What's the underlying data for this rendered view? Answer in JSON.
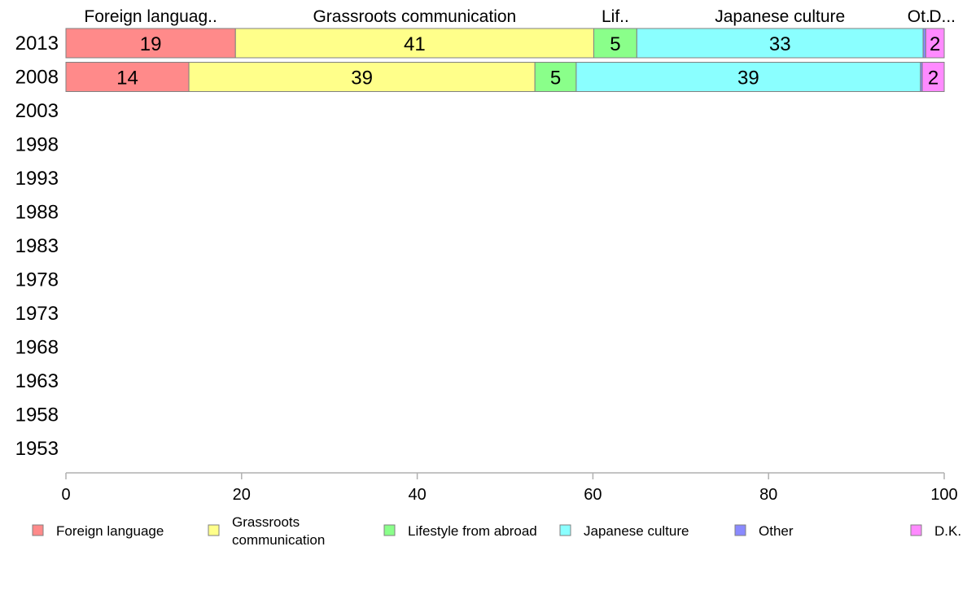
{
  "chart_data": {
    "type": "bar",
    "orientation": "horizontal",
    "stacked": true,
    "title": "",
    "xlabel": "",
    "ylabel": "",
    "xlim": [
      0,
      100
    ],
    "x_ticks": [
      0,
      20,
      40,
      60,
      80,
      100
    ],
    "categories": [
      "2013",
      "2008",
      "2003",
      "1998",
      "1993",
      "1988",
      "1983",
      "1978",
      "1973",
      "1968",
      "1963",
      "1958",
      "1953"
    ],
    "series": [
      {
        "name": "Foreign language",
        "color": "#ff8a8a",
        "values": [
          19.3,
          14,
          null,
          null,
          null,
          null,
          null,
          null,
          null,
          null,
          null,
          null,
          null
        ]
      },
      {
        "name": "Grassroots communication",
        "color": "#ffff8a",
        "values": [
          40.8,
          39.4,
          null,
          null,
          null,
          null,
          null,
          null,
          null,
          null,
          null,
          null,
          null
        ]
      },
      {
        "name": "Lifestyle from abroad",
        "color": "#8aff8a",
        "values": [
          4.9,
          4.7,
          null,
          null,
          null,
          null,
          null,
          null,
          null,
          null,
          null,
          null,
          null
        ]
      },
      {
        "name": "Japanese culture",
        "color": "#8affff",
        "values": [
          32.6,
          39.2,
          null,
          null,
          null,
          null,
          null,
          null,
          null,
          null,
          null,
          null,
          null
        ]
      },
      {
        "name": "Other",
        "color": "#8a8aff",
        "values": [
          0.3,
          0.2,
          null,
          null,
          null,
          null,
          null,
          null,
          null,
          null,
          null,
          null,
          null
        ]
      },
      {
        "name": "D.K.",
        "color": "#ff8aff",
        "values": [
          2.1,
          2.5,
          null,
          null,
          null,
          null,
          null,
          null,
          null,
          null,
          null,
          null,
          null
        ]
      }
    ],
    "bar_labels": [
      [
        "19",
        "41",
        "5",
        "33",
        "",
        "2"
      ],
      [
        "14",
        "39",
        "5",
        "39",
        "",
        "2"
      ]
    ],
    "segment_header_labels": [
      "Foreign languag..",
      "Grassroots communication",
      "Lif..",
      "Japanese culture",
      "Ot..",
      "D..."
    ],
    "legend": {
      "placement": "bottom",
      "entries": [
        {
          "lines": [
            "Foreign language"
          ]
        },
        {
          "lines": [
            "Grassroots",
            "communication"
          ]
        },
        {
          "lines": [
            "Lifestyle from abroad"
          ]
        },
        {
          "lines": [
            "Japanese culture"
          ]
        },
        {
          "lines": [
            "Other"
          ]
        },
        {
          "lines": [
            "D.K."
          ]
        }
      ]
    },
    "grid": false
  }
}
